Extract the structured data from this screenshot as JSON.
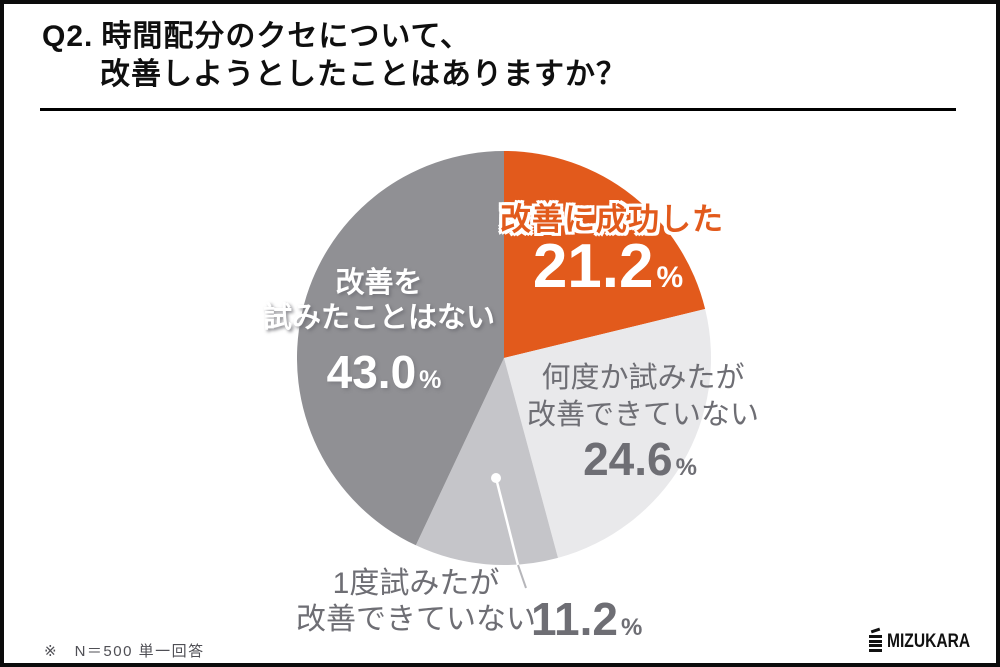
{
  "title": {
    "prefix": "Q2.",
    "line1": "時間配分のクセについて、",
    "line2": "改善しようとしたことはありますか？"
  },
  "chart_data": {
    "type": "pie",
    "title": "Q2. 時間配分のクセについて、改善しようとしたことはありますか？",
    "categories": [
      "改善に成功した",
      "何度か試みたが改善できていない",
      "1度試みたが改善できていない",
      "改善を試みたことはない"
    ],
    "values": [
      21.2,
      24.6,
      11.2,
      43.0
    ],
    "unit": "%",
    "colors": [
      "#e25a1c",
      "#e9e9eb",
      "#c5c5c9",
      "#909094"
    ],
    "start_angle_deg": 0,
    "direction": "clockwise",
    "highlight_index": 0,
    "legend_position": "labels-on-slices",
    "sample_note": "N＝500 単一回答"
  },
  "labels": {
    "success": {
      "name": "改善に成功した",
      "value": "21.2",
      "unit": "%"
    },
    "tried_many": {
      "line1": "何度か試みたが",
      "line2": "改善できていない",
      "value": "24.6",
      "unit": "%"
    },
    "never": {
      "line1": "改善を",
      "line2": "試みたことはない",
      "value": "43.0",
      "unit": "%"
    },
    "tried_once": {
      "line1": "1度試みたが",
      "line2": "改善できていない",
      "value": "11.2",
      "unit": "%"
    }
  },
  "footnote": "※　N＝500 単一回答",
  "logo": {
    "text": "MIZUKARA",
    "mark": "stacked-bars-icon"
  }
}
